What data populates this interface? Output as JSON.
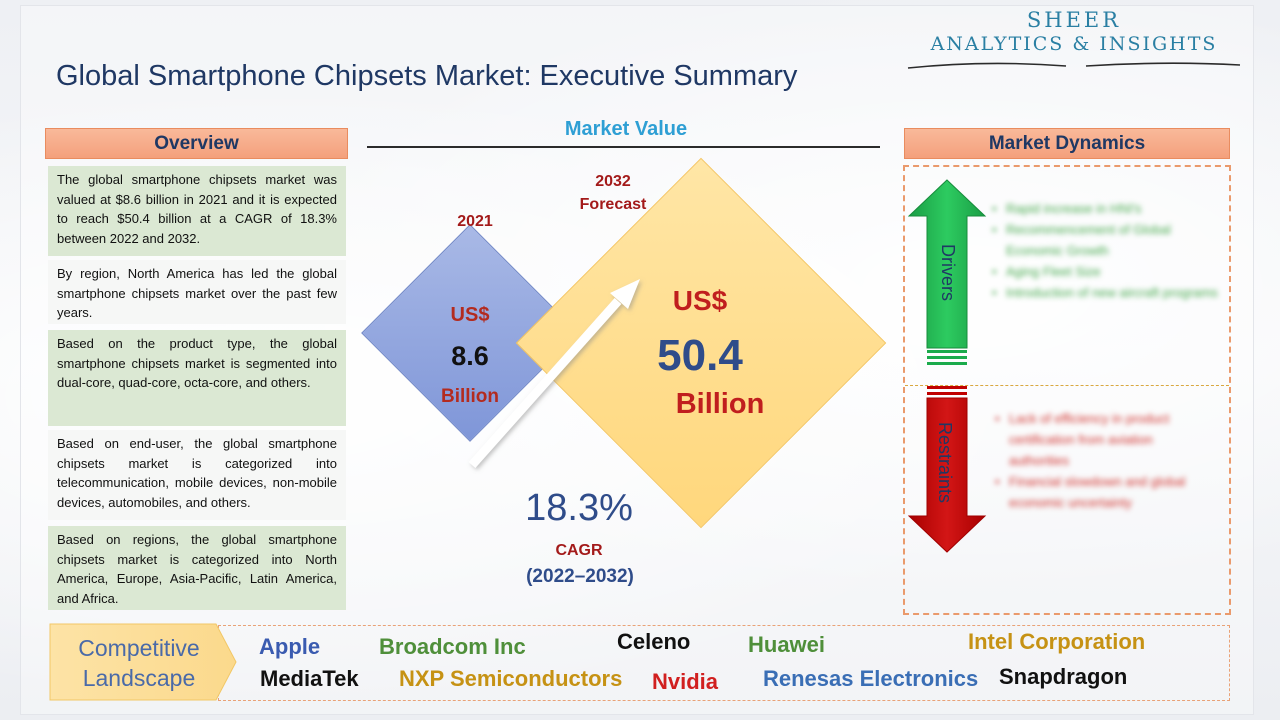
{
  "logo": {
    "line1": "SHEER",
    "line2": "ANALYTICS & INSIGHTS"
  },
  "title": "Global Smartphone Chipsets Market: Executive Summary",
  "overview": {
    "header": "Overview",
    "paragraphs": [
      "The global smartphone chipsets market was valued at $8.6 billion in 2021 and it is expected to reach $50.4 billion at a CAGR of 18.3% between 2022 and 2032.",
      "By region, North America has led the global smartphone chipsets market over the past few years.",
      "Based on the product type, the global smartphone chipsets market is segmented into dual-core, quad-core, octa-core, and others.",
      "Based on end-user, the global smartphone chipsets market is categorized into telecommunication, mobile devices, non-mobile devices, automobiles, and others.",
      "Based on regions, the global smartphone chipsets market is categorized into North America, Europe, Asia-Pacific, Latin America, and Africa."
    ]
  },
  "market_value": {
    "title": "Market Value",
    "base": {
      "year": "2021",
      "currency": "US$",
      "value": "8.6",
      "unit": "Billion"
    },
    "forecast": {
      "year_line1": "2032",
      "year_line2": "Forecast",
      "currency": "US$",
      "value": "50.4",
      "unit": "Billion"
    },
    "cagr": {
      "value": "18.3%",
      "label": "CAGR",
      "period": "(2022–2032)"
    }
  },
  "market_dynamics": {
    "header": "Market Dynamics",
    "drivers_label": "Drivers",
    "drivers": [
      "Rapid increase in HNI's",
      "Recommencement of Global Economic Growth",
      "Aging Fleet Size",
      "Introduction of new aircraft programs"
    ],
    "restraints_label": "Restraints",
    "restraints": [
      "Lack of efficiency in product certification from aviation authorities",
      "Financial slowdown and global economic uncertainty"
    ]
  },
  "competitive_landscape": {
    "label_line1": "Competitive",
    "label_line2": "Landscape",
    "companies": [
      {
        "name": "Apple",
        "color": "#3a5bb0"
      },
      {
        "name": "Broadcom Inc",
        "color": "#4f8f3a"
      },
      {
        "name": "Celeno",
        "color": "#111111"
      },
      {
        "name": "Huawei",
        "color": "#4f8f3a"
      },
      {
        "name": "Intel Corporation",
        "color": "#c69214"
      },
      {
        "name": "MediaTek",
        "color": "#111111"
      },
      {
        "name": "NXP Semiconductors",
        "color": "#c69214"
      },
      {
        "name": "Nvidia",
        "color": "#d11f1f"
      },
      {
        "name": "Renesas Electronics",
        "color": "#3a6eb5"
      },
      {
        "name": "Snapdragon",
        "color": "#111111"
      }
    ]
  },
  "colors": {
    "title": "#1f3864",
    "header_fill": "#f4a07c",
    "small_diamond": "#8fa3dd",
    "big_diamond": "#ffd77c",
    "drivers_arrow": "#1bab4c",
    "restraints_arrow": "#c00000"
  }
}
